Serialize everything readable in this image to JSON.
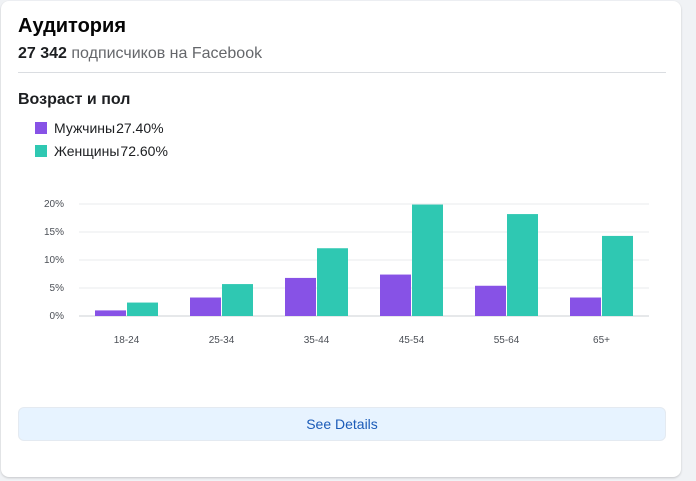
{
  "header": {
    "title": "Аудитория",
    "subscriber_count": "27 342",
    "subscriber_text": "подписчиков на Facebook"
  },
  "section": {
    "title": "Возраст и пол"
  },
  "legend": [
    {
      "label": "Мужчины",
      "value": "27.40%",
      "color": "#8752e6"
    },
    {
      "label": "Женщины",
      "value": "72.60%",
      "color": "#2fc8b2"
    }
  ],
  "chart_data": {
    "type": "bar",
    "categories": [
      "18-24",
      "25-34",
      "35-44",
      "45-54",
      "55-64",
      "65+"
    ],
    "series": [
      {
        "name": "Мужчины",
        "values": [
          1.0,
          3.3,
          6.8,
          7.4,
          5.4,
          3.3
        ],
        "color": "#8752e6"
      },
      {
        "name": "Женщины",
        "values": [
          2.4,
          5.7,
          12.1,
          19.9,
          18.2,
          14.3
        ],
        "color": "#2fc8b2"
      }
    ],
    "y_ticks": [
      "0%",
      "5%",
      "10%",
      "15%",
      "20%"
    ],
    "ylim": [
      0,
      20
    ],
    "grid": true
  },
  "actions": {
    "see_details_label": "See Details"
  }
}
